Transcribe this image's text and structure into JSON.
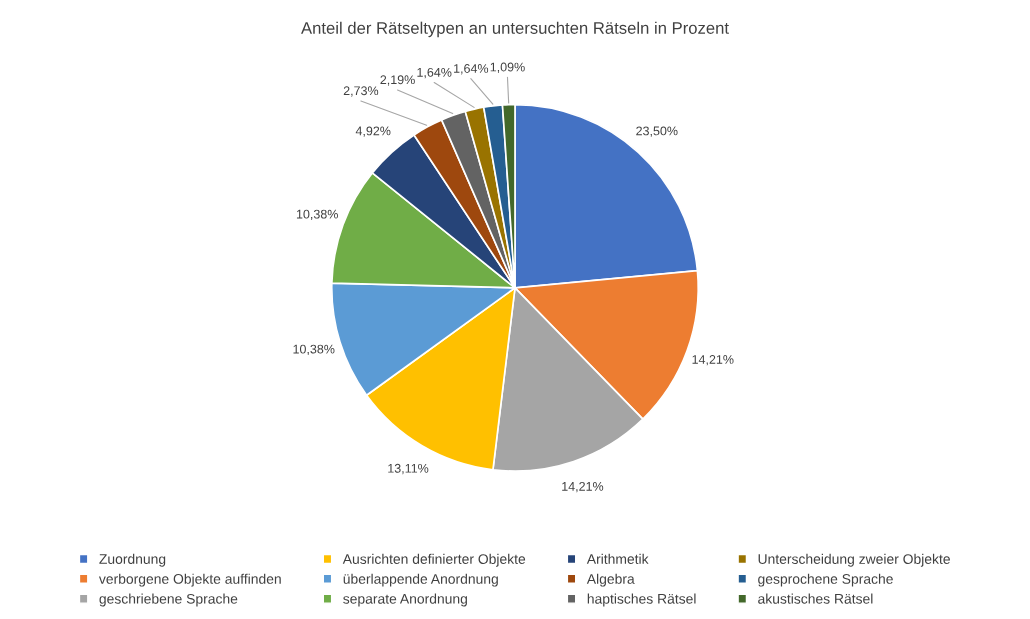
{
  "chart_data": {
    "type": "pie",
    "title": "Anteil der Rätseltypen an untersuchten Rätseln in Prozent",
    "categories": [
      "Zuordnung",
      "verborgene Objekte auffinden",
      "geschriebene Sprache",
      "Ausrichten definierter Objekte",
      "überlappende Anordnung",
      "separate Anordnung",
      "Arithmetik",
      "Algebra",
      "haptisches Rätsel",
      "Unterscheidung zweier Objekte",
      "gesprochene Sprache",
      "akustisches Rätsel"
    ],
    "values": [
      23.5,
      14.21,
      14.21,
      13.11,
      10.38,
      10.38,
      4.92,
      2.73,
      2.19,
      1.64,
      1.64,
      1.09
    ],
    "value_labels": [
      "23,50%",
      "14,21%",
      "14,21%",
      "13,11%",
      "10,38%",
      "10,38%",
      "4,92%",
      "2,73%",
      "2,19%",
      "1,64%",
      "1,64%",
      "1,09%"
    ],
    "colors": [
      "#4472c4",
      "#ed7d31",
      "#a5a5a5",
      "#ffc000",
      "#5b9bd5",
      "#70ad47",
      "#264478",
      "#9e480e",
      "#636363",
      "#997300",
      "#255e91",
      "#43682b"
    ],
    "legend": "bottom"
  }
}
